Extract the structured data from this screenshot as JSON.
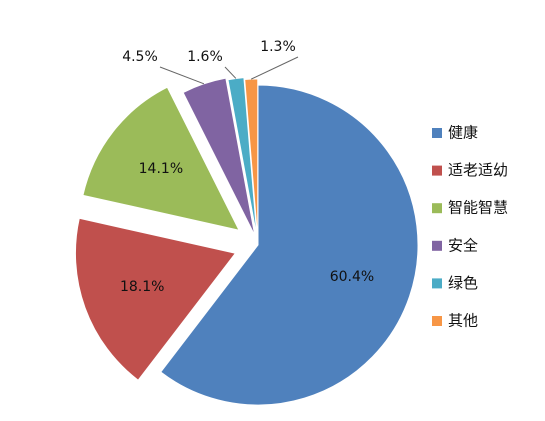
{
  "chart_data": {
    "type": "pie",
    "categories": [
      "健康",
      "适老适幼",
      "智能智慧",
      "安全",
      "绿色",
      "其他"
    ],
    "values": [
      60.4,
      18.1,
      14.1,
      4.5,
      1.6,
      1.3
    ],
    "value_labels": [
      "60.4%",
      "18.1%",
      "14.1%",
      "4.5%",
      "1.6%",
      "1.3%"
    ],
    "colors": [
      "#4f81bd",
      "#c0504d",
      "#9bbb59",
      "#8064a2",
      "#4bacc6",
      "#f79646"
    ],
    "legend": "right"
  }
}
